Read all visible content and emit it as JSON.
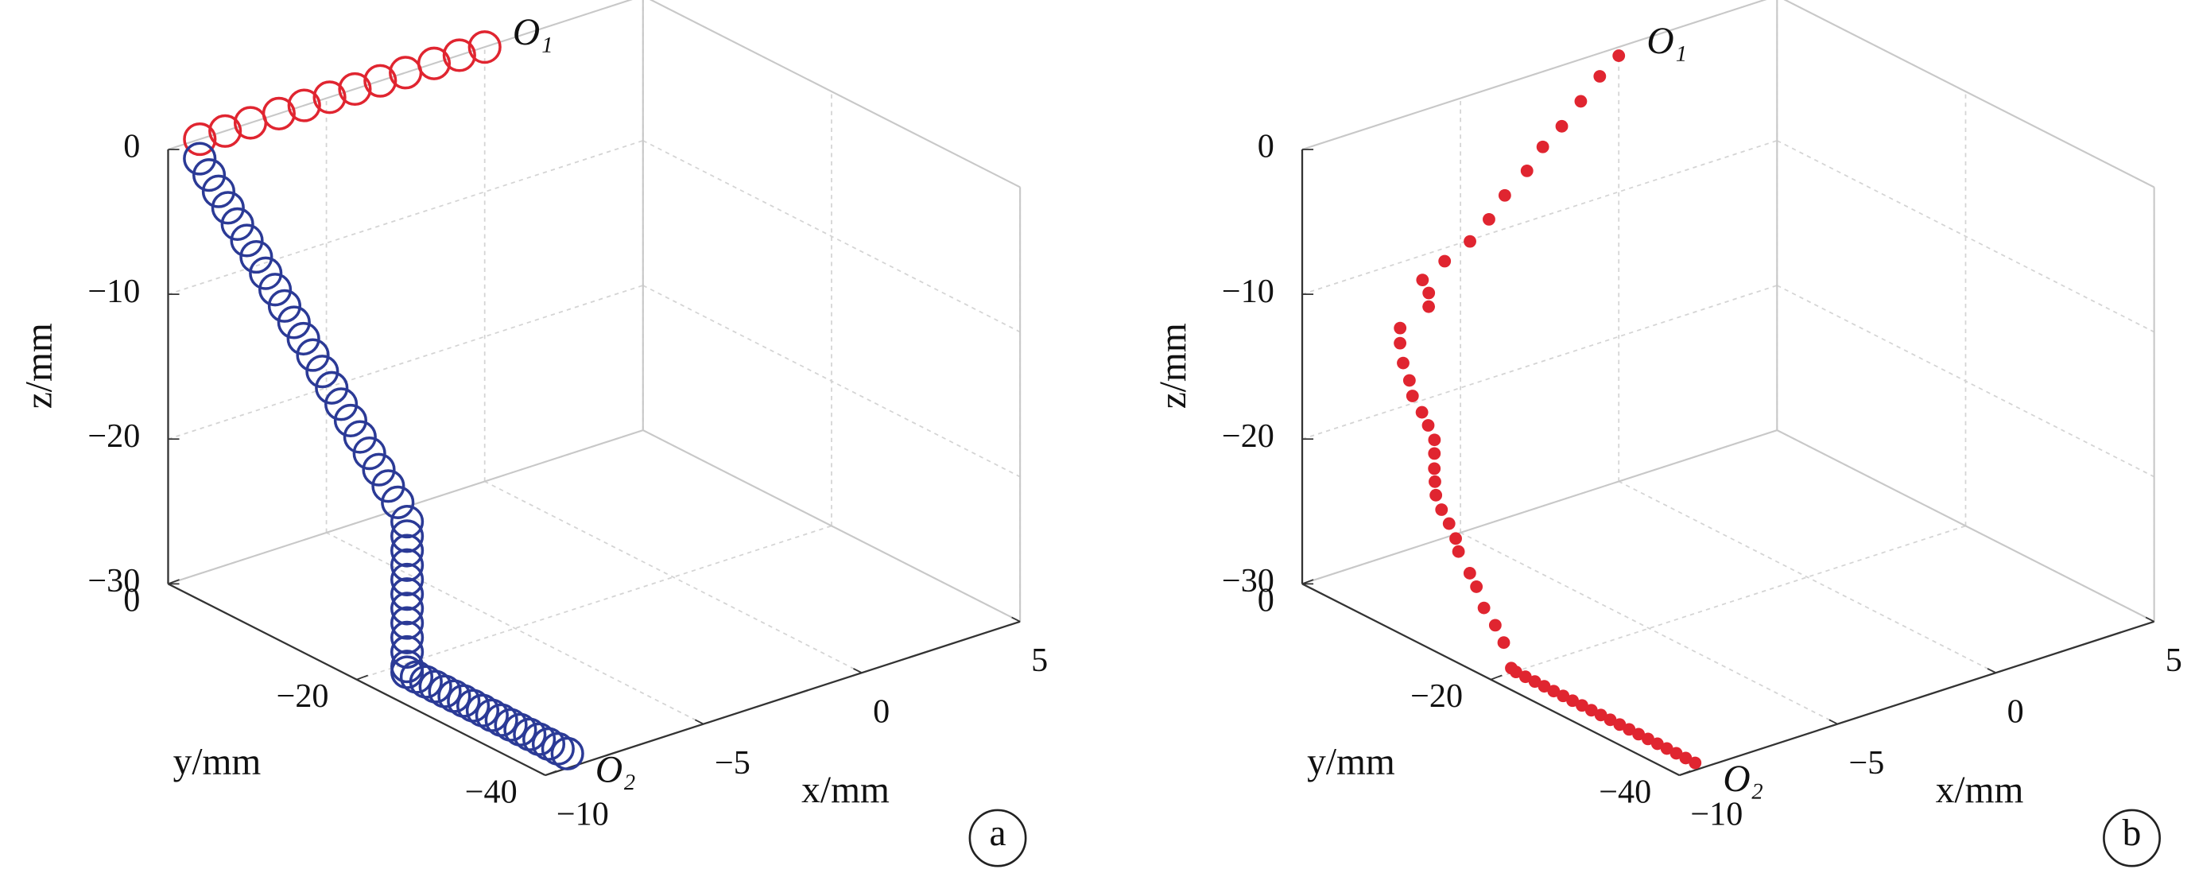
{
  "chart_data": [
    {
      "type": "scatter3d",
      "panel_label": "a",
      "xlabel": "x/mm",
      "ylabel": "y/mm",
      "zlabel": "z/mm",
      "xlim": [
        -10,
        5
      ],
      "ylim": [
        -40,
        0
      ],
      "zlim": [
        -30,
        0
      ],
      "xticks": [
        {
          "value": -10,
          "label": "−10"
        },
        {
          "value": -5,
          "label": "−5"
        },
        0,
        5
      ],
      "yticks": [
        {
          "value": -40,
          "label": "−40"
        },
        {
          "value": -20,
          "label": "−20"
        },
        0
      ],
      "zticks": [
        {
          "value": -30,
          "label": "−30"
        },
        {
          "value": -20,
          "label": "−20"
        },
        {
          "value": -10,
          "label": "−10"
        },
        0
      ],
      "grid": true,
      "annotations": [
        "O₁",
        "O₂"
      ],
      "series": [
        {
          "color": "#e02530",
          "marker": "o",
          "x": [
            -9,
            -8.2,
            -7.4,
            -6.5,
            -5.7,
            -4.9,
            -4.1,
            -3.3,
            -2.5,
            -1.6,
            -0.8,
            0
          ],
          "y": [
            0,
            0,
            0,
            0,
            0,
            0,
            0,
            0,
            0,
            0,
            0,
            0
          ],
          "z": [
            0,
            0,
            0,
            0,
            0,
            0,
            0,
            0,
            0,
            0,
            0,
            0
          ]
        },
        {
          "color": "#2b3a96",
          "marker": "o",
          "x": [
            -9.3,
            -9.3,
            -9.3,
            -9.3,
            -9.3,
            -9.3,
            -9.3,
            -9.3,
            -9.3,
            -9.3,
            -9.3,
            -9.3,
            -9.3,
            -9.3,
            -9.3,
            -9.3,
            -9.3,
            -9.3,
            -9.3,
            -9.3,
            -9.3,
            -9.3,
            -9.3,
            -9.3,
            -9.3,
            -9.3,
            -9.3,
            -9.3,
            -9.3,
            -9.3,
            -9.3,
            -9.3,
            -9.3,
            -9.3,
            -9.3,
            -9.3,
            -9.3,
            -9.3,
            -9.3,
            -9.3,
            -9.3,
            -9.3,
            -9.3,
            -9.3,
            -9.3,
            -9.3,
            -9.3,
            -9.3,
            -9.3,
            -9.3,
            -9.3
          ],
          "y": [
            -1,
            -2,
            -3,
            -4,
            -5,
            -6,
            -7,
            -8,
            -9,
            -10,
            -11,
            -12,
            -13,
            -14,
            -15,
            -16,
            -17,
            -18,
            -19,
            -20,
            -21,
            -22,
            -23,
            -23,
            -23,
            -23,
            -23,
            -23,
            -23,
            -23,
            -23,
            -23,
            -23,
            -23,
            -24,
            -25,
            -26,
            -27,
            -28,
            -29,
            -30,
            -31,
            -32,
            -33,
            -34,
            -35,
            -36,
            -37,
            -38,
            -39,
            -40
          ],
          "z": [
            -0.8,
            -1.6,
            -2.4,
            -3.2,
            -4,
            -4.8,
            -5.6,
            -6.4,
            -7.2,
            -8,
            -8.8,
            -9.6,
            -10.4,
            -11.2,
            -12,
            -12.8,
            -13.6,
            -14.4,
            -15.2,
            -16,
            -16.8,
            -17.6,
            -18.6,
            -19.6,
            -20.6,
            -21.6,
            -22.6,
            -23.6,
            -24.6,
            -25.6,
            -26.6,
            -27.6,
            -28.6,
            -29,
            -29,
            -29,
            -29,
            -29,
            -29,
            -29,
            -29,
            -29,
            -29,
            -29,
            -29,
            -29,
            -29,
            -29,
            -29,
            -29,
            -29
          ]
        }
      ]
    },
    {
      "type": "scatter3d",
      "panel_label": "b",
      "xlabel": "x/mm",
      "ylabel": "y/mm",
      "zlabel": "z/mm",
      "xlim": [
        -10,
        5
      ],
      "ylim": [
        -40,
        0
      ],
      "zlim": [
        -30,
        0
      ],
      "xticks": [
        {
          "value": -10,
          "label": "−10"
        },
        {
          "value": -5,
          "label": "−5"
        },
        0,
        5
      ],
      "yticks": [
        {
          "value": -40,
          "label": "−40"
        },
        {
          "value": -20,
          "label": "−20"
        },
        0
      ],
      "zticks": [
        {
          "value": -30,
          "label": "−30"
        },
        {
          "value": -20,
          "label": "−20"
        },
        {
          "value": -10,
          "label": "−10"
        },
        0
      ],
      "grid": true,
      "annotations": [
        "O₁",
        "O₂"
      ],
      "series": [
        {
          "color": "#e02530",
          "marker": ".",
          "x": [
            0,
            -0.6,
            -1.2,
            -1.8,
            -2.4,
            -2.9,
            -3.6,
            -4.1,
            -4.7,
            -5.5,
            -6.2,
            -6.3,
            -6.6,
            -7.8,
            -8.1,
            -8.3,
            -8.4,
            -8.6,
            -8.6,
            -8.7,
            -8.8,
            -9.1,
            -9.4,
            -9.5,
            -9.5,
            -9.5,
            -9.5,
            -9.5,
            -9.5,
            -9.5,
            -9.5,
            -9.5,
            -9.5,
            -9.5,
            -9.5,
            -9.5,
            -9.5,
            -9.5,
            -9.5,
            -9.5,
            -9.5,
            -9.5,
            -9.5,
            -9.5,
            -9.5,
            -9.5,
            -9.5,
            -9.5,
            -9.5,
            -9.5,
            -9.5,
            -9.5,
            -9.5,
            -9.5,
            -9.5
          ],
          "y": [
            0,
            0,
            0,
            0,
            0,
            0,
            0,
            0,
            0,
            0,
            0,
            -1,
            -2,
            -3,
            -4,
            -5,
            -6,
            -7,
            -8,
            -9,
            -10,
            -11,
            -12,
            -12.4,
            -12.5,
            -13.1,
            -13.9,
            -14.6,
            -14.9,
            -16.1,
            -16.8,
            -17.6,
            -18.8,
            -19.7,
            -20.5,
            -21,
            -22,
            -23,
            -24,
            -25,
            -26,
            -27,
            -28,
            -29,
            -30,
            -31,
            -32,
            -33,
            -34,
            -35,
            -36,
            -37,
            -38,
            -39,
            -40
          ],
          "z": [
            -0.6,
            -1.6,
            -2.9,
            -4.2,
            -5.2,
            -6.5,
            -7.7,
            -9,
            -10.1,
            -10.9,
            -11.7,
            -12.2,
            -12.6,
            -12.9,
            -13.4,
            -14.3,
            -15.1,
            -15.7,
            -16.5,
            -17,
            -17.6,
            -18,
            -18.5,
            -19.2,
            -20.1,
            -20.9,
            -21.6,
            -22.4,
            -23.2,
            -24.3,
            -25,
            -26.2,
            -27,
            -27.9,
            -29.4,
            -29.5,
            -29.5,
            -29.5,
            -29.5,
            -29.5,
            -29.5,
            -29.5,
            -29.5,
            -29.5,
            -29.5,
            -29.5,
            -29.5,
            -29.5,
            -29.5,
            -29.5,
            -29.5,
            -29.5,
            -29.5,
            -29.5,
            -29.5
          ]
        }
      ]
    }
  ]
}
